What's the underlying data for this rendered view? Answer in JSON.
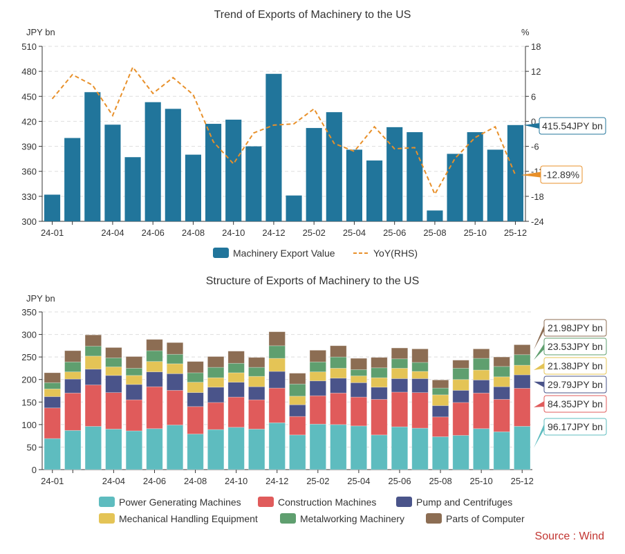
{
  "chart_data": [
    {
      "type": "bar",
      "title": "Trend of Exports of Machinery to the US",
      "ylabel": "JPY bn",
      "ylabel_right": "%",
      "ylim": [
        300,
        510
      ],
      "ylim_right": [
        -24,
        18
      ],
      "yticks": [
        300,
        330,
        360,
        390,
        420,
        450,
        480,
        510
      ],
      "yticks_right": [
        -24,
        -18,
        -12,
        -6,
        0,
        6,
        12,
        18
      ],
      "categories": [
        "24-01",
        "24-02",
        "24-03",
        "24-04",
        "24-05",
        "24-06",
        "24-07",
        "24-08",
        "24-09",
        "24-10",
        "24-11",
        "24-12",
        "25-01",
        "25-02",
        "25-03",
        "25-04",
        "25-05",
        "25-06",
        "25-07",
        "25-08",
        "25-09",
        "25-10",
        "25-11",
        "25-12"
      ],
      "xtick_labels": [
        "24-01",
        "24-04",
        "24-06",
        "24-08",
        "24-10",
        "24-12",
        "25-02",
        "25-04",
        "25-06",
        "25-08",
        "25-10",
        "25-12"
      ],
      "grid": true,
      "legend_position": "bottom",
      "series": [
        {
          "name": "Machinery Export Value",
          "kind": "bar",
          "axis": "left",
          "color": "#21759b",
          "values": [
            332,
            400,
            455,
            416,
            377,
            443,
            435,
            380,
            417,
            422,
            390,
            477,
            331,
            412,
            431,
            386,
            373,
            413,
            407,
            313,
            381,
            407,
            386,
            415.54
          ]
        },
        {
          "name": "YoY(RHS)",
          "kind": "line-dashed",
          "axis": "right",
          "color": "#e8902a",
          "values": [
            5.4,
            11.2,
            8.7,
            1.4,
            13.0,
            6.7,
            10.5,
            6.4,
            -4.9,
            -10.2,
            -2.8,
            -0.9,
            -0.6,
            3.0,
            -5.3,
            -7.2,
            -1.3,
            -6.6,
            -6.3,
            -17.5,
            -8.9,
            -3.9,
            -1.3,
            -12.89
          ]
        }
      ],
      "annotations": [
        "415.54JPY bn",
        "-12.89%"
      ]
    },
    {
      "type": "bar",
      "stacked": true,
      "title": "Structure of Exports of Machinery to the US",
      "ylabel": "JPY bn",
      "ylim": [
        0,
        350
      ],
      "yticks": [
        0,
        50,
        100,
        150,
        200,
        250,
        300,
        350
      ],
      "categories": [
        "24-01",
        "24-02",
        "24-03",
        "24-04",
        "24-05",
        "24-06",
        "24-07",
        "24-08",
        "24-09",
        "24-10",
        "24-11",
        "24-12",
        "25-01",
        "25-02",
        "25-03",
        "25-04",
        "25-05",
        "25-06",
        "25-07",
        "25-08",
        "25-09",
        "25-10",
        "25-11",
        "25-12"
      ],
      "xtick_labels": [
        "24-01",
        "24-04",
        "24-06",
        "24-08",
        "24-10",
        "24-12",
        "25-02",
        "25-04",
        "25-06",
        "25-08",
        "25-10",
        "25-12"
      ],
      "grid": true,
      "legend_position": "bottom",
      "series": [
        {
          "name": "Power Generating Machines",
          "color": "#5ebcbf",
          "values": [
            69,
            87,
            96,
            90,
            86,
            91,
            99,
            79,
            89,
            94,
            90,
            104,
            77,
            101,
            100,
            97,
            77,
            95,
            92,
            73,
            76,
            91,
            84,
            96.17
          ]
        },
        {
          "name": "Construction Machines",
          "color": "#e05b5b",
          "values": [
            68,
            83,
            92,
            81,
            69,
            93,
            77,
            61,
            60,
            67,
            65,
            77,
            41,
            63,
            70,
            64,
            79,
            77,
            79,
            44,
            73,
            79,
            72,
            84.35
          ]
        },
        {
          "name": "Pump and Centrifuges",
          "color": "#4a548a",
          "values": [
            25,
            31,
            35,
            38,
            34,
            33,
            37,
            31,
            34,
            33,
            29,
            37,
            26,
            33,
            33,
            32,
            27,
            30,
            31,
            25,
            27,
            29,
            28,
            29.79
          ]
        },
        {
          "name": "Mechanical Handling Equipment",
          "color": "#e4c456",
          "values": [
            17,
            16,
            29,
            19,
            20,
            23,
            22,
            23,
            21,
            21,
            23,
            29,
            19,
            20,
            22,
            15,
            21,
            23,
            16,
            24,
            24,
            22,
            22,
            21.38
          ]
        },
        {
          "name": "Metalworking Machinery",
          "color": "#5f9f6f",
          "values": [
            14,
            22,
            22,
            20,
            16,
            24,
            21,
            21,
            23,
            21,
            20,
            28,
            27,
            22,
            25,
            14,
            22,
            21,
            20,
            15,
            25,
            26,
            23,
            23.53
          ]
        },
        {
          "name": "Parts of Computer",
          "color": "#8c6d53",
          "values": [
            22,
            25,
            25,
            23,
            26,
            25,
            26,
            25,
            24,
            27,
            22,
            31,
            24,
            26,
            25,
            25,
            23,
            24,
            30,
            18,
            18,
            21,
            21,
            21.98
          ]
        }
      ],
      "annotations": [
        "21.98JPY bn",
        "23.53JPY bn",
        "21.38JPY bn",
        "29.79JPY bn",
        "84.35JPY bn",
        "96.17JPY bn"
      ]
    }
  ],
  "source": "Source : Wind"
}
